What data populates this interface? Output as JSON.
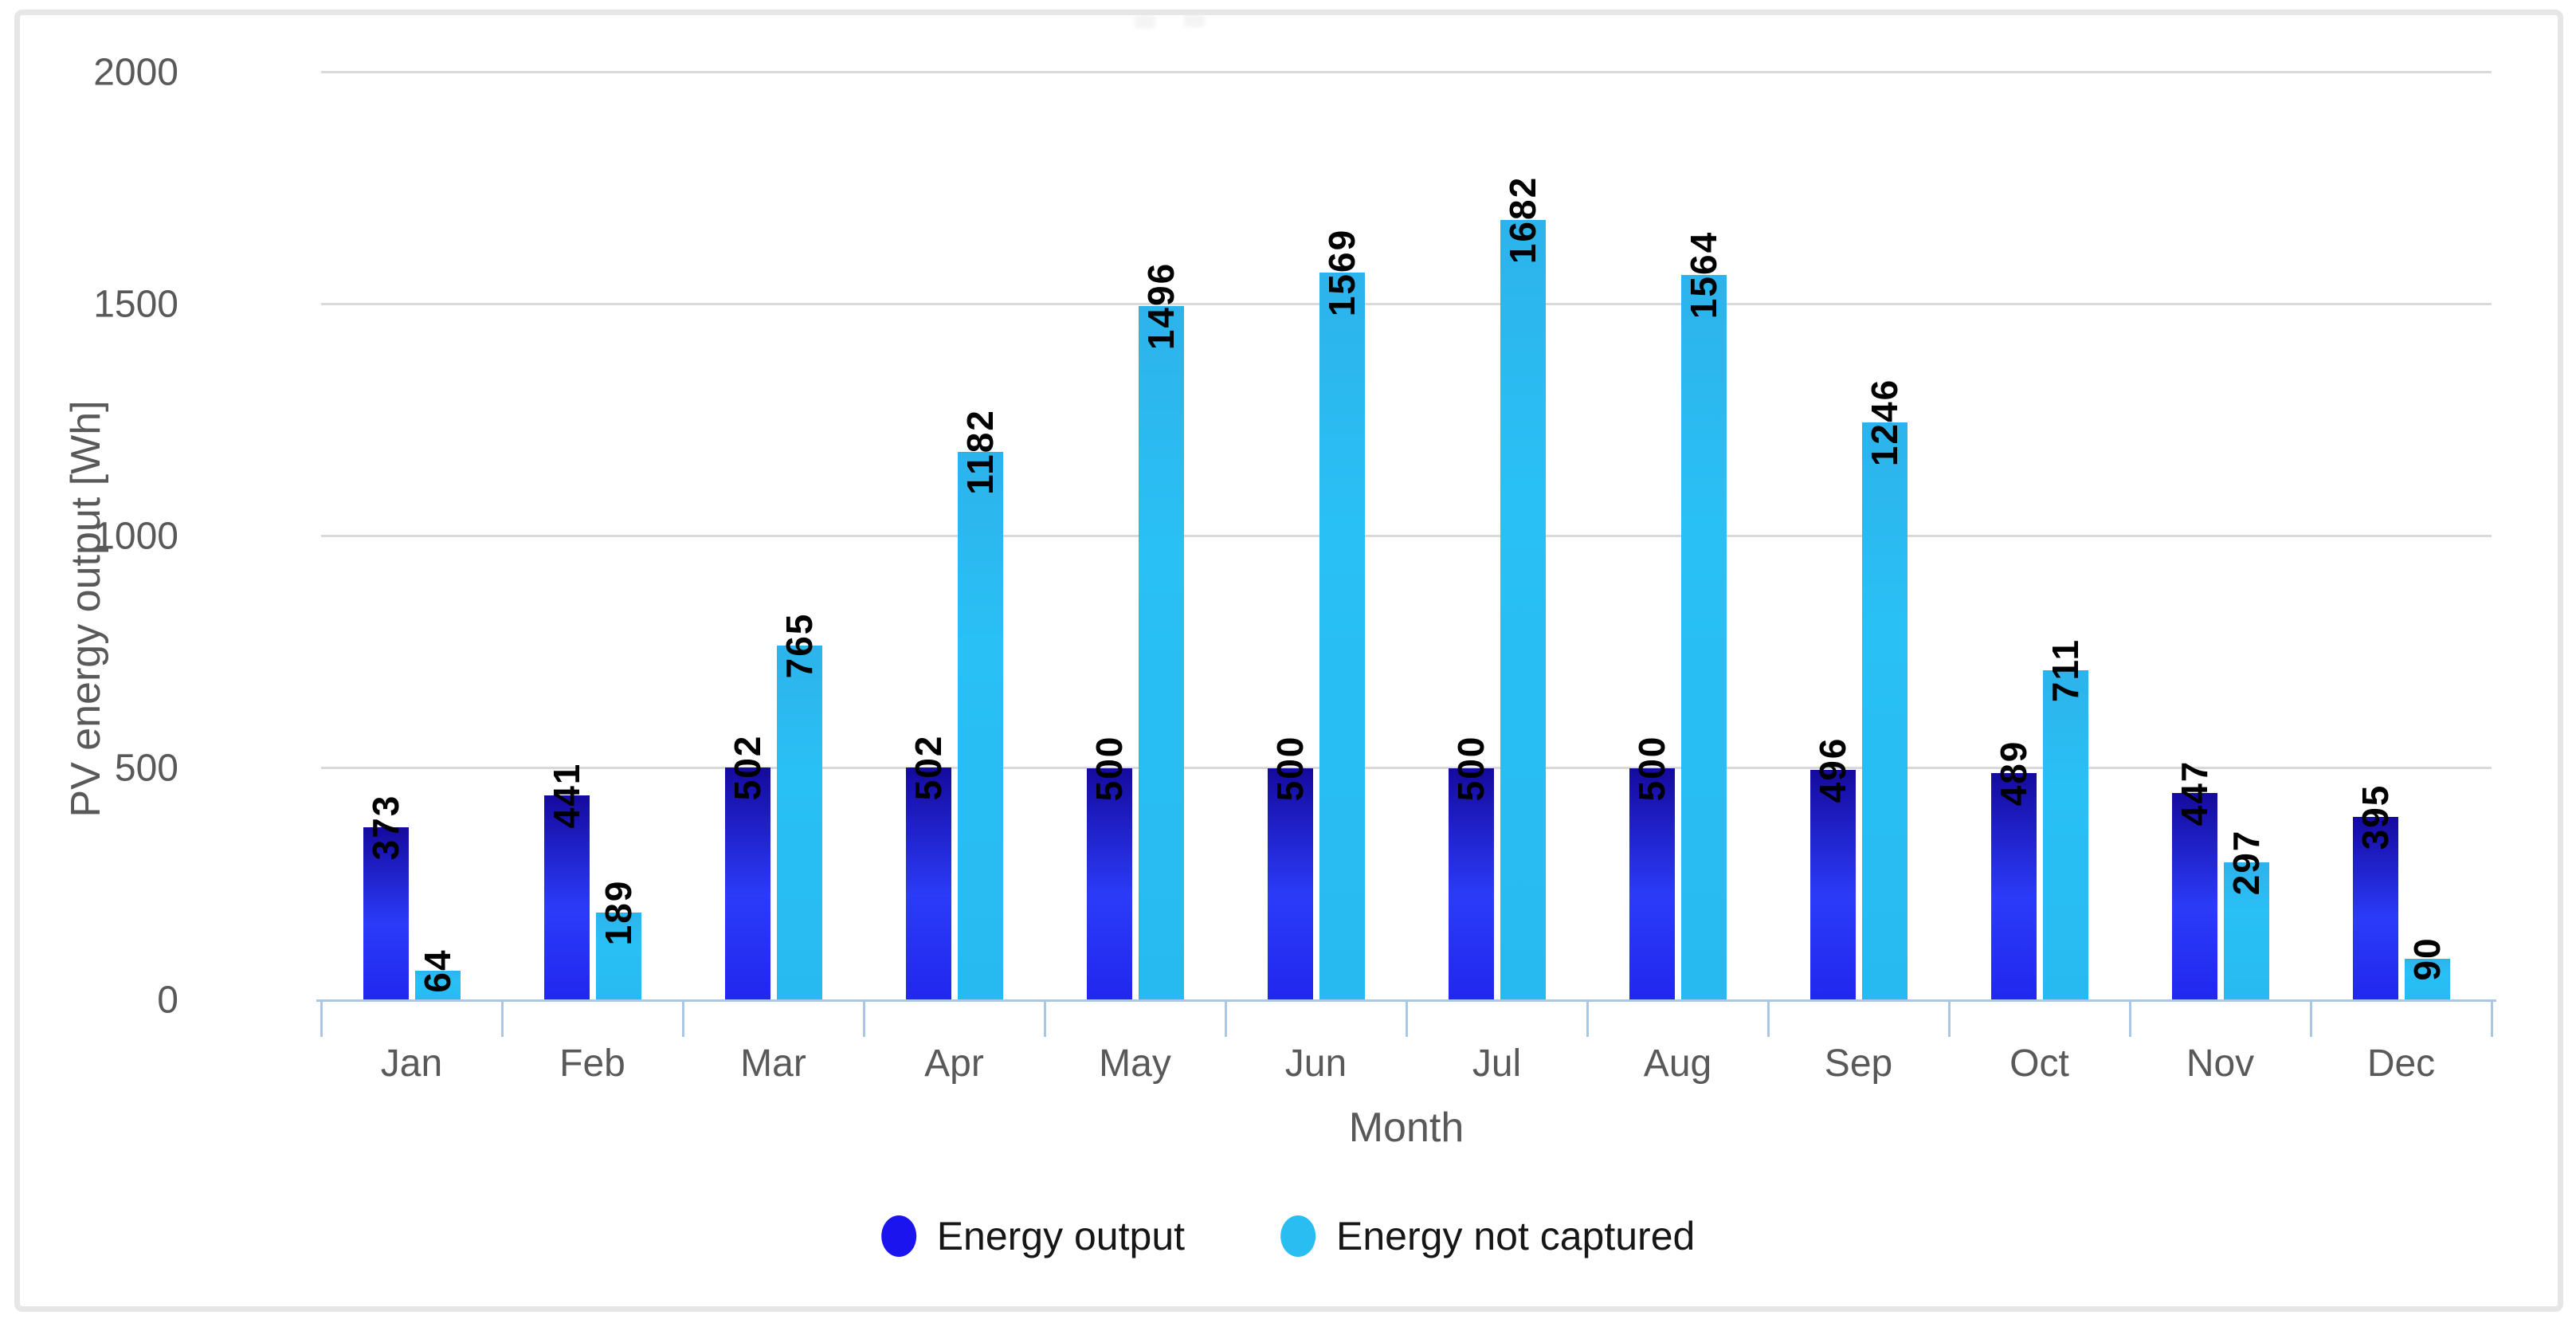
{
  "chart_data": {
    "type": "bar",
    "title": "",
    "categories": [
      "Jan",
      "Feb",
      "Mar",
      "Apr",
      "May",
      "Jun",
      "Jul",
      "Aug",
      "Sep",
      "Oct",
      "Nov",
      "Dec"
    ],
    "series": [
      {
        "name": "Energy output",
        "color": "#1c14ee",
        "values": [
          373,
          441,
          502,
          502,
          500,
          500,
          500,
          500,
          496,
          489,
          447,
          395
        ]
      },
      {
        "name": "Energy not captured",
        "color": "#29bdf2",
        "values": [
          64,
          189,
          765,
          1182,
          1496,
          1569,
          1682,
          1564,
          1246,
          711,
          297,
          90
        ]
      }
    ],
    "xlabel": "Month",
    "ylabel": "PV energy output [Wh]",
    "ylim": [
      0,
      2000
    ],
    "y_ticks": [
      0,
      500,
      1000,
      1500,
      2000
    ],
    "grid": "horizontal-major",
    "bar_labels": "rotated-90-at-bar-top",
    "legend_position": "bottom-center"
  },
  "colors": {
    "series_blue": "#1c14ee",
    "series_cyan": "#29bdf2",
    "gridline": "#d9d9d9",
    "axis_line": "#aac8e4",
    "axis_text": "#595959",
    "bar_label_text": "#000000",
    "frame_border": "#e6e6e6",
    "background": "#ffffff"
  }
}
